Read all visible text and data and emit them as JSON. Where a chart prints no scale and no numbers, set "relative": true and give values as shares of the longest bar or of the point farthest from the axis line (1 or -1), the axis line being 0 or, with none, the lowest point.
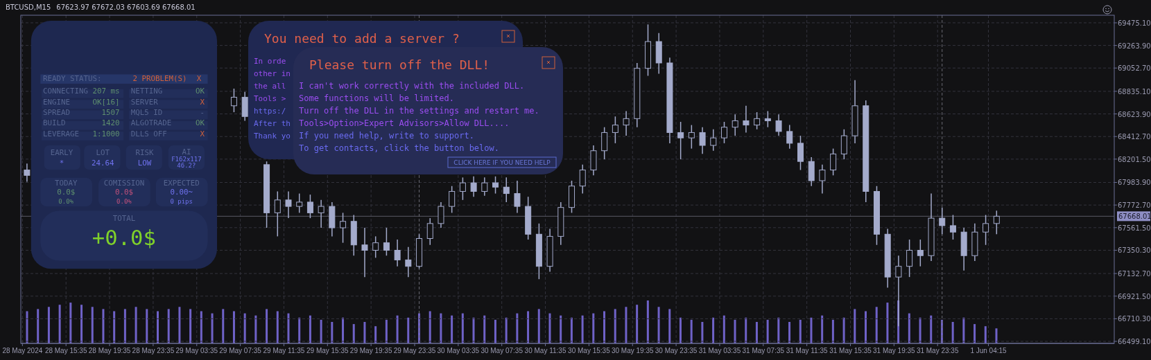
{
  "chart_data": [
    {
      "type": "candlestick",
      "title": "BTCUSD,M15",
      "subtitle": "67623.97 67672.03 67603.69 67668.01",
      "color": "#a4abcc",
      "grid": true,
      "xlim": [
        "2024-05-28T11:26",
        "2024-06-01T15:48"
      ],
      "ylim": [
        66480,
        69546
      ],
      "x": [
        "2024-05-28T12:00",
        "2024-05-29T07:00",
        "2024-05-29T08:00",
        "2024-05-29T10:00",
        "2024-05-29T11:00",
        "2024-05-29T12:00",
        "2024-05-29T13:00",
        "2024-05-29T14:00",
        "2024-05-29T15:00",
        "2024-05-29T16:00",
        "2024-05-29T17:00",
        "2024-05-29T18:00",
        "2024-05-29T19:00",
        "2024-05-29T20:00",
        "2024-05-29T21:00",
        "2024-05-29T22:00",
        "2024-05-29T23:00",
        "2024-05-30T00:00",
        "2024-05-30T01:00",
        "2024-05-30T02:00",
        "2024-05-30T03:00",
        "2024-05-30T04:00",
        "2024-05-30T05:00",
        "2024-05-30T06:00",
        "2024-05-30T07:00",
        "2024-05-30T08:00",
        "2024-05-30T09:00",
        "2024-05-30T10:00",
        "2024-05-30T11:00",
        "2024-05-30T12:00",
        "2024-05-30T13:00",
        "2024-05-30T14:00",
        "2024-05-30T15:00",
        "2024-05-30T16:00",
        "2024-05-30T17:00",
        "2024-05-30T18:00",
        "2024-05-30T19:00",
        "2024-05-30T20:00",
        "2024-05-30T21:00",
        "2024-05-30T22:00",
        "2024-05-30T23:00",
        "2024-05-31T00:00",
        "2024-05-31T01:00",
        "2024-05-31T02:00",
        "2024-05-31T03:00",
        "2024-05-31T04:00",
        "2024-05-31T05:00",
        "2024-05-31T06:00",
        "2024-05-31T07:00",
        "2024-05-31T08:00",
        "2024-05-31T09:00",
        "2024-05-31T10:00",
        "2024-05-31T11:00",
        "2024-05-31T12:00",
        "2024-05-31T13:00",
        "2024-05-31T14:00",
        "2024-05-31T15:00",
        "2024-05-31T16:00",
        "2024-05-31T17:00",
        "2024-05-31T18:00",
        "2024-05-31T19:00",
        "2024-05-31T20:00",
        "2024-05-31T21:00",
        "2024-05-31T22:00",
        "2024-05-31T23:00",
        "2024-06-01T00:00",
        "2024-06-01T01:00",
        "2024-06-01T02:00",
        "2024-06-01T03:00",
        "2024-06-01T04:00",
        "2024-06-01T05:00"
      ],
      "ohlc": [
        [
          68100,
          68160,
          67990,
          68050
        ],
        [
          68700,
          68860,
          68640,
          68780
        ],
        [
          68780,
          68830,
          68560,
          68600
        ],
        [
          68150,
          68180,
          67560,
          67700
        ],
        [
          67700,
          67900,
          67480,
          67820
        ],
        [
          67820,
          67900,
          67650,
          67760
        ],
        [
          67760,
          67880,
          67700,
          67800
        ],
        [
          67800,
          67870,
          67650,
          67700
        ],
        [
          67700,
          67820,
          67560,
          67760
        ],
        [
          67760,
          67800,
          67480,
          67560
        ],
        [
          67560,
          67700,
          67420,
          67620
        ],
        [
          67620,
          67680,
          67300,
          67400
        ],
        [
          67400,
          67560,
          67100,
          67350
        ],
        [
          67350,
          67480,
          67280,
          67420
        ],
        [
          67420,
          67560,
          67300,
          67350
        ],
        [
          67350,
          67450,
          67200,
          67260
        ],
        [
          67260,
          67380,
          67100,
          67200
        ],
        [
          67200,
          67500,
          67180,
          67460
        ],
        [
          67460,
          67650,
          67400,
          67600
        ],
        [
          67600,
          67800,
          67560,
          67760
        ],
        [
          67760,
          67950,
          67700,
          67900
        ],
        [
          67900,
          68030,
          67820,
          67980
        ],
        [
          67980,
          68040,
          67850,
          67900
        ],
        [
          67900,
          68030,
          67860,
          67980
        ],
        [
          67980,
          68040,
          67880,
          67940
        ],
        [
          67940,
          68030,
          67800,
          67880
        ],
        [
          67880,
          68000,
          67700,
          67760
        ],
        [
          67760,
          67850,
          67450,
          67500
        ],
        [
          67500,
          67600,
          67080,
          67200
        ],
        [
          67200,
          67550,
          67150,
          67480
        ],
        [
          67480,
          67800,
          67400,
          67750
        ],
        [
          67750,
          68000,
          67700,
          67950
        ],
        [
          67950,
          68150,
          67880,
          68100
        ],
        [
          68100,
          68330,
          68050,
          68280
        ],
        [
          68280,
          68500,
          68200,
          68450
        ],
        [
          68450,
          68600,
          68350,
          68520
        ],
        [
          68520,
          68650,
          68420,
          68580
        ],
        [
          68580,
          69100,
          68500,
          69050
        ],
        [
          69050,
          69460,
          68980,
          69300
        ],
        [
          69300,
          69380,
          69000,
          69100
        ],
        [
          69100,
          69150,
          68350,
          68450
        ],
        [
          68450,
          68550,
          68200,
          68400
        ],
        [
          68400,
          68520,
          68300,
          68450
        ],
        [
          68450,
          68500,
          68250,
          68330
        ],
        [
          68330,
          68480,
          68280,
          68400
        ],
        [
          68400,
          68550,
          68350,
          68500
        ],
        [
          68500,
          68620,
          68420,
          68560
        ],
        [
          68560,
          68700,
          68450,
          68520
        ],
        [
          68520,
          68640,
          68480,
          68580
        ],
        [
          68580,
          68650,
          68500,
          68560
        ],
        [
          68560,
          68620,
          68420,
          68460
        ],
        [
          68460,
          68520,
          68300,
          68350
        ],
        [
          68350,
          68420,
          68100,
          68180
        ],
        [
          68180,
          68220,
          67950,
          68000
        ],
        [
          68000,
          68150,
          67880,
          68100
        ],
        [
          68100,
          68300,
          68050,
          68250
        ],
        [
          68250,
          68480,
          68200,
          68420
        ],
        [
          68420,
          68940,
          68350,
          68700
        ],
        [
          68700,
          68750,
          67800,
          67900
        ],
        [
          67900,
          67950,
          67400,
          67500
        ],
        [
          67500,
          67550,
          67000,
          67100
        ],
        [
          67100,
          67300,
          66640,
          67200
        ],
        [
          67200,
          67450,
          67100,
          67350
        ],
        [
          67350,
          67450,
          67200,
          67300
        ],
        [
          67300,
          67880,
          67250,
          67650
        ],
        [
          67650,
          67750,
          67500,
          67580
        ],
        [
          67580,
          67680,
          67450,
          67520
        ],
        [
          67520,
          67560,
          67160,
          67300
        ],
        [
          67300,
          67600,
          67250,
          67520
        ],
        [
          67520,
          67680,
          67400,
          67600
        ],
        [
          67600,
          67720,
          67500,
          67668
        ]
      ],
      "xticks": [
        {
          "value": "2024-05-28T11:35",
          "label": "28 May 2024"
        },
        {
          "value": "2024-05-28T15:35",
          "label": "28 May 15:35"
        },
        {
          "value": "2024-05-28T19:35",
          "label": "28 May 19:35"
        },
        {
          "value": "2024-05-28T23:35",
          "label": "28 May 23:35"
        },
        {
          "value": "2024-05-29T03:35",
          "label": "29 May 03:35"
        },
        {
          "value": "2024-05-29T07:35",
          "label": "29 May 07:35"
        },
        {
          "value": "2024-05-29T11:35",
          "label": "29 May 11:35"
        },
        {
          "value": "2024-05-29T15:35",
          "label": "29 May 15:35"
        },
        {
          "value": "2024-05-29T19:35",
          "label": "29 May 19:35"
        },
        {
          "value": "2024-05-29T23:35",
          "label": "29 May 23:35"
        },
        {
          "value": "2024-05-30T03:35",
          "label": "30 May 03:35"
        },
        {
          "value": "2024-05-30T07:35",
          "label": "30 May 07:35"
        },
        {
          "value": "2024-05-30T11:35",
          "label": "30 May 11:35"
        },
        {
          "value": "2024-05-30T15:35",
          "label": "30 May 15:35"
        },
        {
          "value": "2024-05-30T19:35",
          "label": "30 May 19:35"
        },
        {
          "value": "2024-05-30T23:35",
          "label": "30 May 23:35"
        },
        {
          "value": "2024-05-31T03:35",
          "label": "31 May 03:35"
        },
        {
          "value": "2024-05-31T07:35",
          "label": "31 May 07:35"
        },
        {
          "value": "2024-05-31T11:35",
          "label": "31 May 11:35"
        },
        {
          "value": "2024-05-31T15:35",
          "label": "31 May 15:35"
        },
        {
          "value": "2024-05-31T19:35",
          "label": "31 May 19:35"
        },
        {
          "value": "2024-05-31T23:35",
          "label": "31 May 23:35"
        },
        {
          "value": "2024-06-01T04:15",
          "label": "1 Jun 04:15"
        }
      ],
      "yticks": [
        {
          "value": 69475.1,
          "label": "69475.10"
        },
        {
          "value": 69263.9,
          "label": "69263.90"
        },
        {
          "value": 69052.7,
          "label": "69052.70"
        },
        {
          "value": 68835.1,
          "label": "68835.10"
        },
        {
          "value": 68623.9,
          "label": "68623.90"
        },
        {
          "value": 68412.7,
          "label": "68412.70"
        },
        {
          "value": 68201.5,
          "label": "68201.50"
        },
        {
          "value": 67983.9,
          "label": "67983.90"
        },
        {
          "value": 67772.7,
          "label": "67772.70"
        },
        {
          "value": 67561.5,
          "label": "67561.50"
        },
        {
          "value": 67350.3,
          "label": "67350.30"
        },
        {
          "value": 67132.7,
          "label": "67132.70"
        },
        {
          "value": 66921.5,
          "label": "66921.50"
        },
        {
          "value": 66710.3,
          "label": "66710.30"
        },
        {
          "value": 66499.1,
          "label": "66499.10"
        }
      ],
      "ref_lines": [
        {
          "axis": "y",
          "value": 67668.01,
          "label": "67668.01",
          "color": "#5a5a66",
          "line_style": "solid"
        },
        {
          "axis": "x",
          "value": "2024-05-30T00:00",
          "label": null,
          "color": "#6a6a74",
          "line_style": "dashed"
        },
        {
          "axis": "x",
          "value": "2024-06-01T00:00",
          "label": null,
          "color": "#6a6a74",
          "line_style": "dashed"
        }
      ]
    },
    {
      "type": "bar",
      "relative": true,
      "color": "#6f62c8",
      "categories": [
        null,
        null,
        null,
        null,
        null,
        null,
        null,
        null,
        null,
        null,
        null,
        null,
        null,
        null,
        null,
        null,
        null,
        null,
        null,
        null,
        null,
        null,
        null,
        null,
        null,
        null,
        null,
        null,
        null,
        null,
        null,
        null,
        null,
        null,
        null,
        null,
        null,
        null,
        null,
        null,
        null,
        null,
        null,
        null,
        null,
        null,
        null,
        null,
        null,
        null,
        null,
        null,
        null,
        null,
        null,
        null,
        null,
        null,
        null,
        null,
        null,
        null,
        null,
        null,
        null,
        null,
        null,
        null,
        null,
        null,
        null,
        null,
        null,
        null,
        null,
        null,
        null,
        null,
        null,
        null,
        null,
        null,
        null,
        null,
        null,
        null,
        null,
        null,
        null,
        null
      ],
      "values": [
        0.75,
        0.8,
        0.85,
        0.9,
        0.95,
        0.9,
        0.85,
        0.8,
        0.75,
        0.8,
        0.85,
        0.8,
        0.75,
        0.8,
        0.85,
        0.8,
        0.75,
        0.7,
        0.8,
        0.75,
        0.7,
        0.65,
        0.8,
        0.75,
        0.7,
        0.6,
        0.65,
        0.55,
        0.5,
        0.6,
        0.45,
        0.5,
        0.4,
        0.55,
        0.65,
        0.6,
        0.7,
        0.75,
        0.7,
        0.65,
        0.7,
        0.6,
        0.65,
        0.55,
        0.6,
        0.7,
        0.75,
        0.8,
        0.7,
        0.65,
        0.6,
        0.65,
        0.7,
        0.75,
        0.8,
        0.85,
        0.9,
        1.0,
        0.85,
        0.8,
        0.6,
        0.55,
        0.5,
        0.6,
        0.65,
        0.55,
        0.6,
        0.5,
        0.55,
        0.6,
        0.5,
        0.55,
        0.6,
        0.65,
        0.55,
        0.6,
        0.8,
        0.75,
        0.85,
        0.95,
        1.0,
        0.7,
        0.6,
        0.65,
        0.55,
        0.5,
        0.6,
        0.45,
        0.4,
        0.35
      ]
    },
    {
      "type": "other",
      "annotations": [
        "READY STATUS:",
        "2 PROBLEM(S)",
        "X",
        "CONNECTING",
        "207 ms",
        "NETTING",
        "OK",
        "ENGINE",
        "OK[16]",
        "SERVER",
        "X",
        "SPREAD",
        "1507",
        "MQL5 ID",
        "-",
        "BUILD",
        "1420",
        "ALGOTRADE",
        "OK",
        "LEVERAGE",
        "1:1000",
        "DLLS OFF",
        "X",
        "EARLY",
        "*",
        "LOT",
        "24.64",
        "RISK",
        "LOW",
        "AI",
        "F162x117",
        "46.2?",
        "TODAY",
        "0.0$",
        "0.0%",
        "COMISSION",
        "0.0$",
        "0.0%",
        "EXPECTED",
        "0.00~",
        "0 pips",
        "TOTAL",
        "+0.0$"
      ]
    },
    {
      "type": "other",
      "title": "You need to add a server ?",
      "annotations": [
        "In orde",
        "other in",
        "the all",
        "Tools >",
        "https:/",
        "After th",
        "Thank yo"
      ]
    },
    {
      "type": "other",
      "title": "Please turn off the DLL!",
      "annotations": [
        "I can't work correctly with the included DLL.",
        "Some functions will be limited.",
        "Turn off the DLL in the settings and restart me.",
        "Tools>Option>Expert Advisors>Allow DLL....",
        "If you need help, write to support.",
        "To get contacts, click the button below.",
        "CLICK HERE IF YOU NEED HELP"
      ]
    }
  ]
}
